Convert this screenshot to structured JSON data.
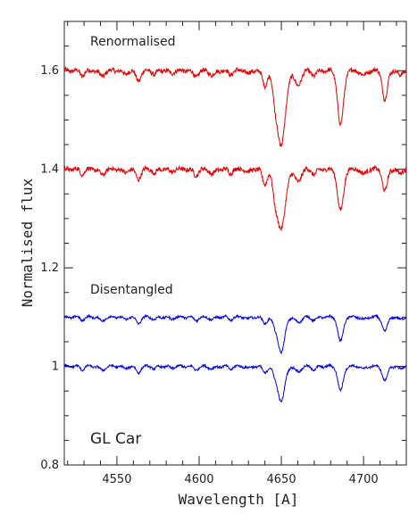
{
  "chart_data": {
    "type": "line",
    "xlabel": "Wavelength [A]",
    "ylabel": "Normalised flux",
    "xlim": [
      4518,
      4726
    ],
    "ylim": [
      0.8,
      1.7
    ],
    "x_ticks": [
      "4550",
      "4600",
      "4650",
      "4700"
    ],
    "y_ticks": [
      "0.8",
      "1",
      "1.2",
      "1.4",
      "1.6"
    ],
    "annotations": [
      "Renormalised",
      "Disentangled",
      "GL Car"
    ],
    "series_colors": {
      "renormalised": "#e00000",
      "disentangled": "#0000dd"
    },
    "grid": false,
    "lines": [
      {
        "color": "#e00000",
        "offset": 1.6,
        "features": [
          [
            4529,
            0.01,
            1.2
          ],
          [
            4541,
            0.012,
            1.5
          ],
          [
            4555,
            0.008,
            1.2
          ],
          [
            4563,
            0.02,
            1.5
          ],
          [
            4573,
            0.008,
            1.2
          ],
          [
            4583,
            0.006,
            1.2
          ],
          [
            4598,
            0.012,
            1.5
          ],
          [
            4608,
            0.01,
            1.5
          ],
          [
            4619,
            0.008,
            1.2
          ],
          [
            4630,
            0.006,
            1.2
          ],
          [
            4640,
            0.03,
            1.5
          ],
          [
            4646,
            0.04,
            1.5
          ],
          [
            4650,
            0.15,
            2.5
          ],
          [
            4660,
            0.03,
            2.0
          ],
          [
            4670,
            0.01,
            1.5
          ],
          [
            4686,
            0.11,
            1.8
          ],
          [
            4700,
            0.01,
            1.5
          ],
          [
            4713,
            0.06,
            1.5
          ],
          [
            4722,
            0.01,
            1.2
          ]
        ]
      },
      {
        "color": "#e00000",
        "offset": 1.4,
        "features": [
          [
            4529,
            0.01,
            1.2
          ],
          [
            4541,
            0.012,
            1.5
          ],
          [
            4555,
            0.008,
            1.2
          ],
          [
            4563,
            0.02,
            1.5
          ],
          [
            4573,
            0.008,
            1.2
          ],
          [
            4583,
            0.006,
            1.2
          ],
          [
            4598,
            0.012,
            1.5
          ],
          [
            4608,
            0.01,
            1.5
          ],
          [
            4619,
            0.008,
            1.2
          ],
          [
            4630,
            0.006,
            1.2
          ],
          [
            4640,
            0.03,
            1.5
          ],
          [
            4646,
            0.04,
            1.5
          ],
          [
            4650,
            0.12,
            2.5
          ],
          [
            4660,
            0.025,
            2.0
          ],
          [
            4670,
            0.01,
            1.5
          ],
          [
            4686,
            0.085,
            1.8
          ],
          [
            4700,
            0.01,
            1.5
          ],
          [
            4713,
            0.045,
            1.5
          ],
          [
            4722,
            0.01,
            1.2
          ]
        ]
      },
      {
        "color": "#0000dd",
        "offset": 1.1,
        "features": [
          [
            4529,
            0.006,
            1.2
          ],
          [
            4541,
            0.008,
            1.5
          ],
          [
            4555,
            0.005,
            1.2
          ],
          [
            4563,
            0.012,
            1.5
          ],
          [
            4573,
            0.005,
            1.2
          ],
          [
            4583,
            0.004,
            1.2
          ],
          [
            4598,
            0.006,
            1.5
          ],
          [
            4608,
            0.005,
            1.5
          ],
          [
            4619,
            0.005,
            1.2
          ],
          [
            4630,
            0.004,
            1.2
          ],
          [
            4640,
            0.012,
            1.5
          ],
          [
            4646,
            0.016,
            1.5
          ],
          [
            4650,
            0.072,
            2.0
          ],
          [
            4660,
            0.01,
            2.0
          ],
          [
            4670,
            0.006,
            1.5
          ],
          [
            4686,
            0.05,
            1.6
          ],
          [
            4700,
            0.005,
            1.5
          ],
          [
            4713,
            0.03,
            1.5
          ],
          [
            4722,
            0.005,
            1.2
          ]
        ]
      },
      {
        "color": "#0000dd",
        "offset": 1.0,
        "features": [
          [
            4529,
            0.006,
            1.2
          ],
          [
            4541,
            0.008,
            1.5
          ],
          [
            4555,
            0.005,
            1.2
          ],
          [
            4563,
            0.012,
            1.5
          ],
          [
            4573,
            0.005,
            1.2
          ],
          [
            4583,
            0.004,
            1.2
          ],
          [
            4598,
            0.006,
            1.5
          ],
          [
            4608,
            0.005,
            1.5
          ],
          [
            4619,
            0.005,
            1.2
          ],
          [
            4630,
            0.004,
            1.2
          ],
          [
            4640,
            0.012,
            1.5
          ],
          [
            4646,
            0.016,
            1.5
          ],
          [
            4650,
            0.072,
            2.0
          ],
          [
            4660,
            0.01,
            2.0
          ],
          [
            4670,
            0.006,
            1.5
          ],
          [
            4686,
            0.05,
            1.6
          ],
          [
            4700,
            0.005,
            1.5
          ],
          [
            4713,
            0.03,
            1.5
          ],
          [
            4722,
            0.005,
            1.2
          ]
        ]
      }
    ]
  }
}
